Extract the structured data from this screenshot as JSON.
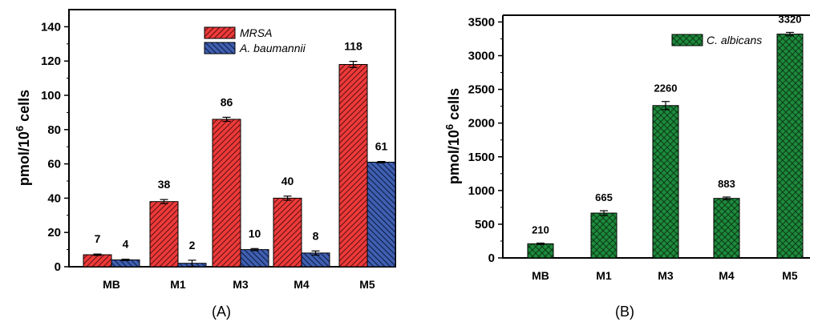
{
  "chart_data": [
    {
      "type": "bar",
      "panel_label": "(A)",
      "ylabel": "pmol/10",
      "ylabel_sup": "6",
      "ylabel_suffix": " cells",
      "ylim": [
        0,
        150
      ],
      "yticks": [
        0,
        20,
        40,
        60,
        80,
        100,
        120,
        140
      ],
      "categories": [
        "MB",
        "M1",
        "M3",
        "M4",
        "M5"
      ],
      "legend_position": "top-center",
      "series": [
        {
          "name": "MRSA",
          "color": "#ee3a3a",
          "pattern": "diagonal-right",
          "values": [
            7,
            38,
            86,
            40,
            118
          ],
          "errors": [
            0.4,
            1.2,
            1.2,
            1.2,
            1.8
          ],
          "labels": [
            "7",
            "38",
            "86",
            "40",
            "118"
          ]
        },
        {
          "name": "A. baumannii",
          "color": "#3f5fb0",
          "pattern": "diagonal-left",
          "values": [
            4,
            2,
            10,
            8,
            61
          ],
          "errors": [
            0.4,
            1.8,
            0.6,
            1.2,
            0.4
          ],
          "labels": [
            "4",
            "2",
            "10",
            "8",
            "61"
          ]
        }
      ]
    },
    {
      "type": "bar",
      "panel_label": "(B)",
      "ylabel": "pmol/10",
      "ylabel_sup": "6",
      "ylabel_suffix": " cells",
      "ylim": [
        0,
        3600
      ],
      "yticks": [
        0,
        500,
        1000,
        1500,
        2000,
        2500,
        3000,
        3500
      ],
      "categories": [
        "MB",
        "M1",
        "M3",
        "M4",
        "M5"
      ],
      "legend_position": "top-right",
      "series": [
        {
          "name": "C. albicans",
          "color": "#1e8a3c",
          "pattern": "crosshatch",
          "values": [
            210,
            665,
            2260,
            883,
            3320
          ],
          "errors": [
            10,
            35,
            60,
            20,
            25
          ],
          "labels": [
            "210",
            "665",
            "2260",
            "883",
            "3320"
          ]
        }
      ]
    }
  ]
}
